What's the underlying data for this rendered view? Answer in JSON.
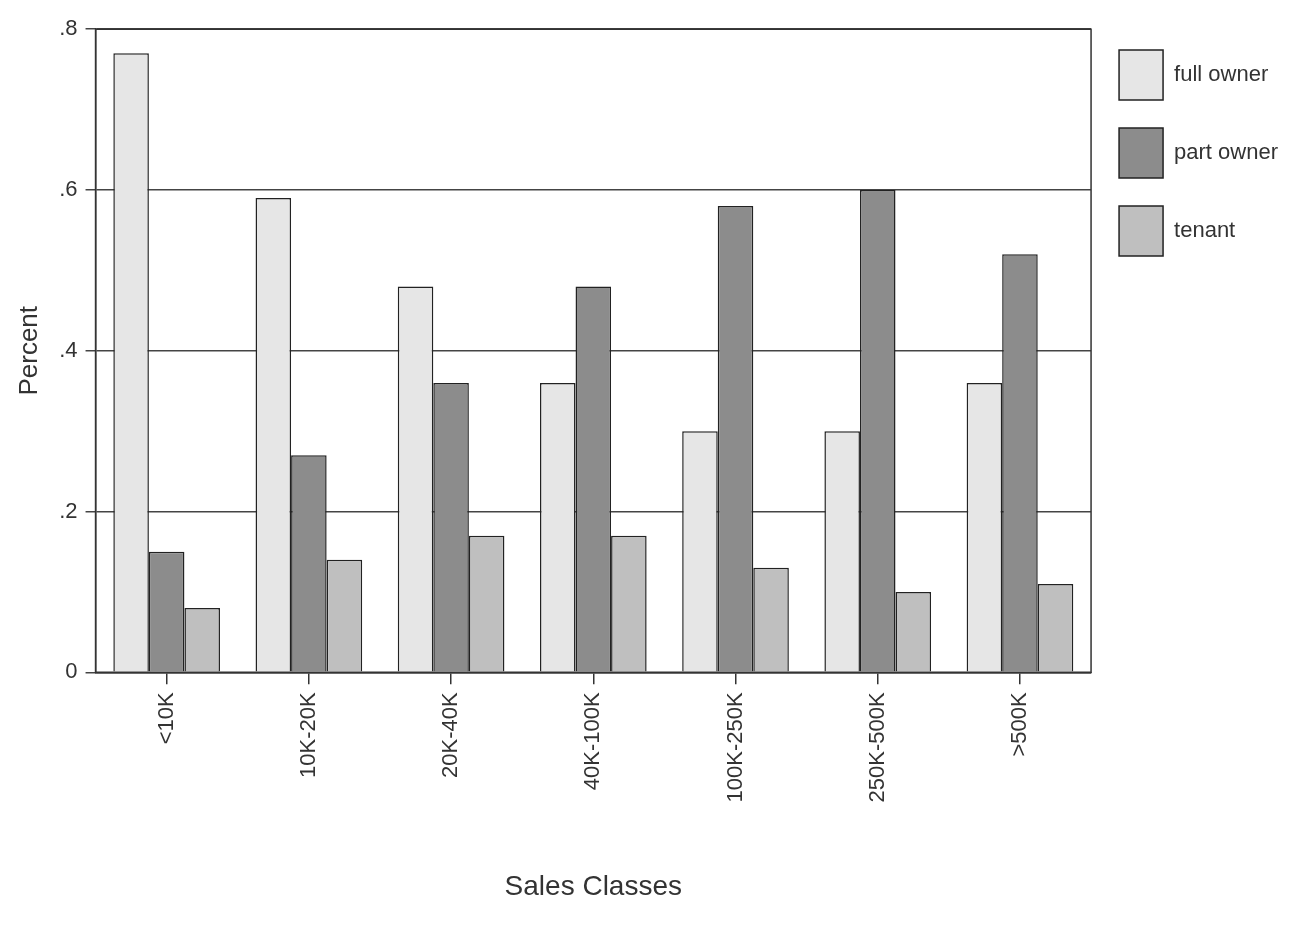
{
  "chart_data": {
    "type": "bar",
    "xlabel": "Sales Classes",
    "ylabel": "Percent",
    "categories": [
      "<10K",
      "10K-20K",
      "20K-40K",
      "40K-100K",
      "100K-250K",
      "250K-500K",
      ">500K"
    ],
    "series": [
      {
        "name": "full owner",
        "color": "#e6e6e6",
        "values": [
          0.77,
          0.59,
          0.48,
          0.36,
          0.3,
          0.3,
          0.36
        ]
      },
      {
        "name": "part owner",
        "color": "#8c8c8c",
        "values": [
          0.15,
          0.27,
          0.36,
          0.48,
          0.58,
          0.6,
          0.52
        ]
      },
      {
        "name": "tenant",
        "color": "#bfbfbf",
        "values": [
          0.08,
          0.14,
          0.17,
          0.17,
          0.13,
          0.1,
          0.11
        ]
      }
    ],
    "ylim": [
      0,
      0.8
    ],
    "yticks": [
      0,
      {
        "value": 0.2,
        "label": ".2"
      },
      {
        "value": 0.4,
        "label": ".4"
      },
      {
        "value": 0.6,
        "label": ".6"
      },
      {
        "value": 0.8,
        "label": ".8"
      }
    ],
    "grid": "y",
    "legend": "top right"
  }
}
